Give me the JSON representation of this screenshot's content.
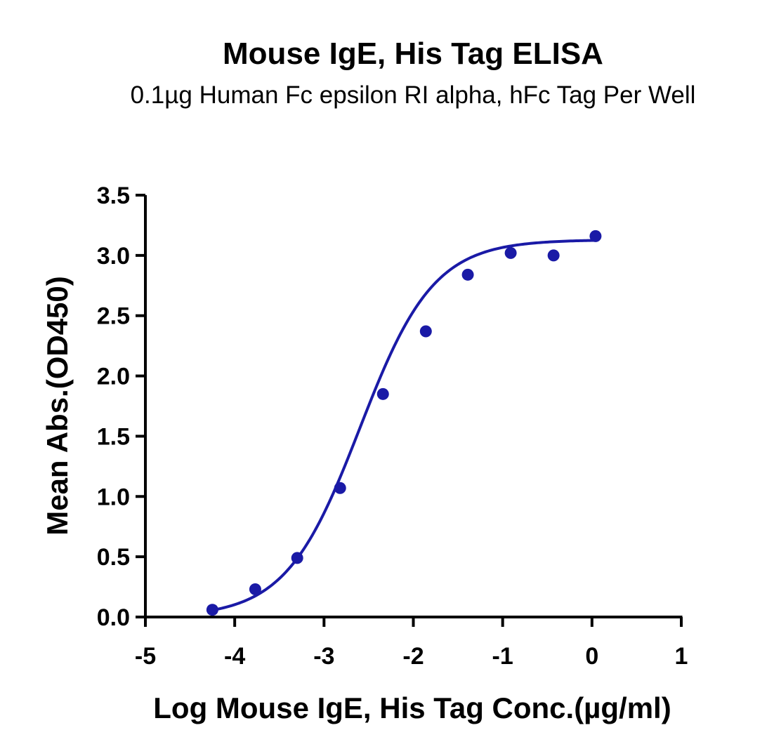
{
  "chart_data": {
    "type": "scatter",
    "title": "Mouse IgE, His Tag ELISA",
    "subtitle": "0.1µg Human Fc epsilon RI alpha, hFc Tag Per Well",
    "xlabel": "Log Mouse IgE, His Tag Conc.(µg/ml)",
    "ylabel": "Mean Abs.(OD450)",
    "xlim": [
      -5,
      1
    ],
    "ylim": [
      0,
      3.5
    ],
    "x_ticks": [
      "-5",
      "-4",
      "-3",
      "-2",
      "-1",
      "0",
      "1"
    ],
    "y_ticks": [
      "0.0",
      "0.5",
      "1.0",
      "1.5",
      "2.0",
      "2.5",
      "3.0",
      "3.5"
    ],
    "grid": false,
    "colors": {
      "series": "#1a1aa6",
      "axis": "#000000"
    },
    "series": [
      {
        "x": [
          -4.25,
          -3.77,
          -3.3,
          -2.82,
          -2.34,
          -1.86,
          -1.39,
          -0.91,
          -0.43,
          0.04
        ],
        "values": [
          0.06,
          0.23,
          0.49,
          1.07,
          1.85,
          2.37,
          2.84,
          3.02,
          3.0,
          3.16
        ]
      }
    ],
    "fit_curve": {
      "type": "4PL",
      "x_range": [
        -4.25,
        0.04
      ],
      "bottom": 0.0,
      "top": 3.13,
      "log_ec50": -2.6,
      "hill_slope": 1.05
    }
  }
}
